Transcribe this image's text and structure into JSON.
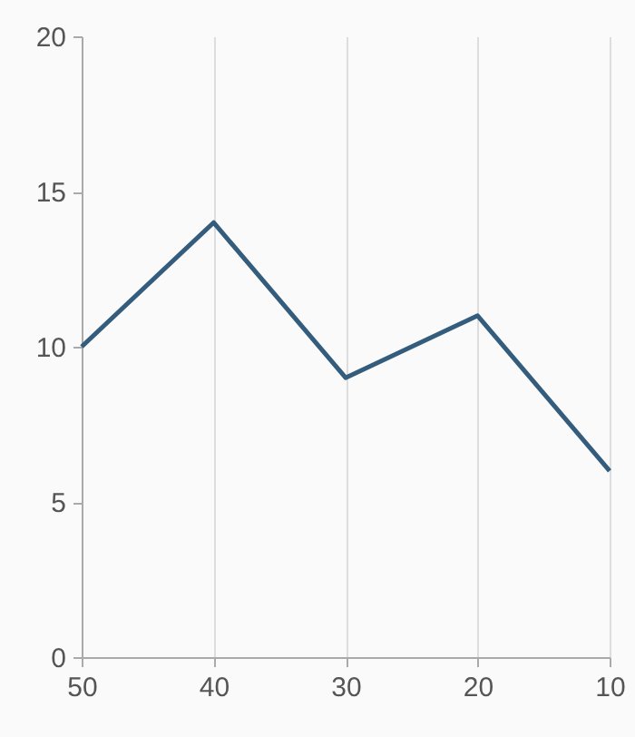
{
  "chart_data": {
    "type": "line",
    "x": [
      50,
      40,
      30,
      20,
      10
    ],
    "series": [
      {
        "color": "#335c7d",
        "values": [
          10,
          14,
          9,
          11,
          6
        ]
      }
    ],
    "xlim": [
      50,
      10
    ],
    "xticks": [
      50,
      40,
      30,
      20,
      10
    ],
    "ylim": [
      0,
      20
    ],
    "yticks": [
      0,
      5,
      10,
      15,
      20
    ],
    "grid": "x",
    "marker": "none",
    "line_style": "solid"
  }
}
